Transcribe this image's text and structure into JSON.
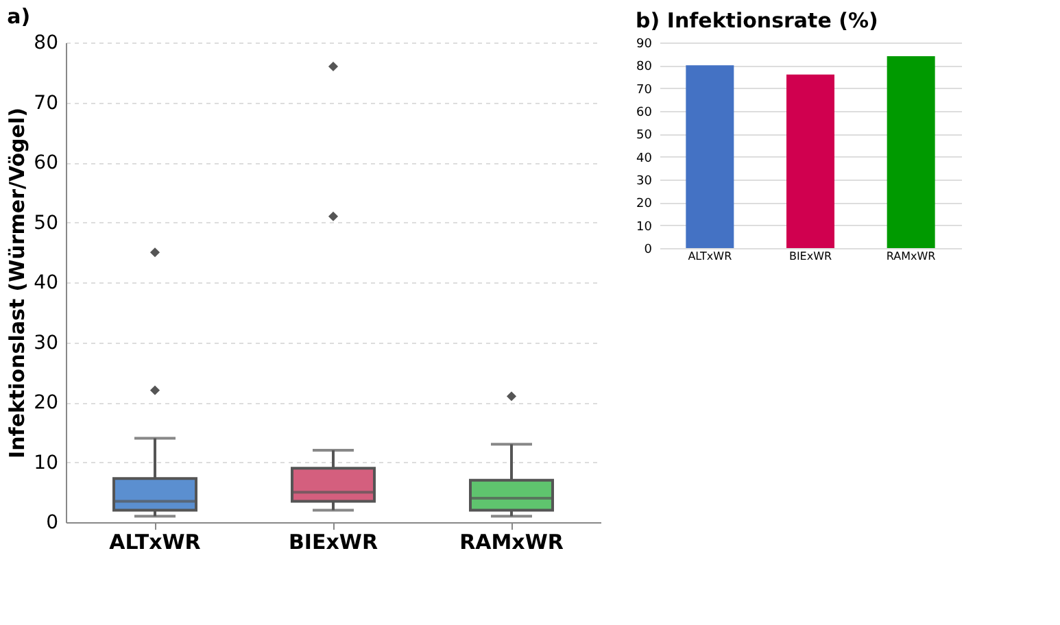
{
  "chart_data": [
    {
      "type": "box",
      "title": "a)",
      "ylabel": "Infektionslast  (Würmer/Vögel)",
      "categories": [
        "ALTxWR",
        "BIExWR",
        "RAMxWR"
      ],
      "boxes": [
        {
          "low": 1,
          "q1": 2,
          "median": 3.5,
          "q3": 7.3,
          "high": 14,
          "outliers": [
            22,
            45
          ]
        },
        {
          "low": 2,
          "q1": 3.5,
          "median": 5,
          "q3": 9,
          "high": 12,
          "outliers": [
            51,
            76
          ]
        },
        {
          "low": 1,
          "q1": 2,
          "median": 4,
          "q3": 7,
          "high": 13,
          "outliers": [
            21
          ]
        }
      ],
      "colors": [
        "#5b8fd0",
        "#d45f7e",
        "#5fc46e"
      ],
      "ylim": [
        0,
        80
      ],
      "yticks": [
        0,
        10,
        20,
        30,
        40,
        50,
        60,
        70,
        80
      ],
      "grid": "y",
      "marker": "diamond"
    },
    {
      "type": "bar",
      "title": "b) Infektionsrate (%)",
      "categories": [
        "ALTxWR",
        "BIExWR",
        "RAMxWR"
      ],
      "values": [
        80,
        76,
        84
      ],
      "colors": [
        "#4472c4",
        "#d0004f",
        "#009a00"
      ],
      "ylim": [
        0,
        90
      ],
      "yticks": [
        0,
        10,
        20,
        30,
        40,
        50,
        60,
        70,
        80,
        90
      ],
      "grid": "y"
    }
  ]
}
